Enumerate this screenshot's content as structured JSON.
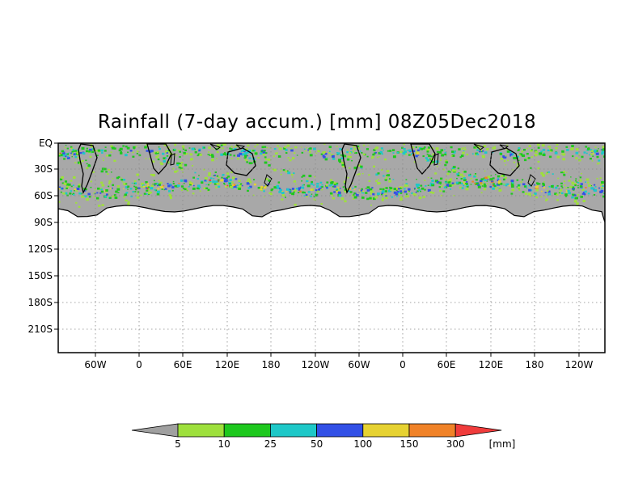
{
  "title": "Rainfall (7-day accum.) [mm] 08Z05Dec2018",
  "y_axis_labels": [
    "EQ",
    "30S",
    "60S",
    "90S",
    "120S",
    "150S",
    "180S",
    "210S"
  ],
  "x_axis_labels": [
    "60W",
    "0",
    "60E",
    "120E",
    "180",
    "120W",
    "60W",
    "0",
    "60E",
    "120E",
    "180",
    "120W"
  ],
  "colorbar": {
    "levels": [
      "5",
      "10",
      "25",
      "50",
      "100",
      "150",
      "300"
    ],
    "unit": "[mm]",
    "colors": [
      "#a0a0a0",
      "#9ee03c",
      "#1ec81e",
      "#1ec8c8",
      "#3250e6",
      "#e6d232",
      "#f08228",
      "#f03c3c"
    ]
  },
  "map": {
    "ocean_color": "#a8a8a8",
    "grid": "dotted",
    "bands": [
      "low",
      "mid",
      "high"
    ]
  }
}
